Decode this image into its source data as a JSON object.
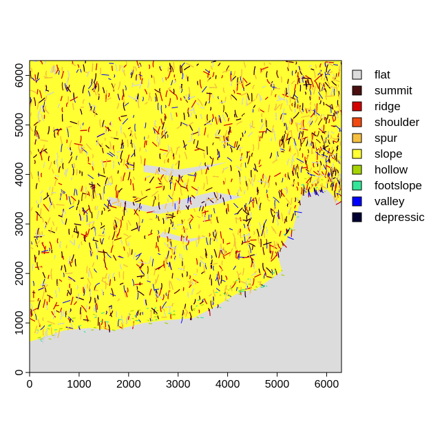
{
  "chart_data": {
    "type": "heatmap",
    "title": "",
    "xlabel": "",
    "ylabel": "",
    "xlim": [
      0,
      6300
    ],
    "ylim": [
      0,
      6300
    ],
    "x_ticks": [
      {
        "value": 0,
        "label": "0"
      },
      {
        "value": 1000,
        "label": "1000"
      },
      {
        "value": 2000,
        "label": "2000"
      },
      {
        "value": 3000,
        "label": "3000"
      },
      {
        "value": 4000,
        "label": "4000"
      },
      {
        "value": 5000,
        "label": "5000"
      },
      {
        "value": 6000,
        "label": "6000"
      }
    ],
    "y_ticks": [
      {
        "value": 0,
        "label": "0"
      },
      {
        "value": 1000,
        "label": "1000"
      },
      {
        "value": 2000,
        "label": "2000"
      },
      {
        "value": 3000,
        "label": "3000"
      },
      {
        "value": 4000,
        "label": "4000"
      },
      {
        "value": 5000,
        "label": "5000"
      },
      {
        "value": 6000,
        "label": "6000"
      }
    ],
    "legend": {
      "position": "right",
      "entries": [
        {
          "label": "flat",
          "color": "#DCDCDC"
        },
        {
          "label": "summit",
          "color": "#4A0F0F"
        },
        {
          "label": "ridge",
          "color": "#D40000"
        },
        {
          "label": "shoulder",
          "color": "#F04A10"
        },
        {
          "label": "spur",
          "color": "#F5C040"
        },
        {
          "label": "slope",
          "color": "#FFFF33"
        },
        {
          "label": "hollow",
          "color": "#A6D400"
        },
        {
          "label": "footslope",
          "color": "#33E699"
        },
        {
          "label": "valley",
          "color": "#0000FF"
        },
        {
          "label": "depressic",
          "color": "#000033"
        }
      ]
    },
    "coastline_boundary": [
      [
        0,
        620
      ],
      [
        700,
        850
      ],
      [
        1200,
        900
      ],
      [
        1700,
        850
      ],
      [
        2300,
        1000
      ],
      [
        2700,
        1050
      ],
      [
        3300,
        1100
      ],
      [
        3700,
        1300
      ],
      [
        4200,
        1600
      ],
      [
        4600,
        1700
      ],
      [
        5100,
        2050
      ],
      [
        5000,
        2400
      ],
      [
        5300,
        2850
      ],
      [
        5400,
        3200
      ],
      [
        5500,
        3600
      ],
      [
        6000,
        3700
      ],
      [
        6250,
        3450
      ]
    ],
    "flat_inlets": [
      [
        [
          2300,
          4200
        ],
        [
          3000,
          4100
        ],
        [
          4000,
          4250
        ],
        [
          3000,
          3950
        ],
        [
          2300,
          4050
        ]
      ],
      [
        [
          1600,
          3550
        ],
        [
          2500,
          3350
        ],
        [
          3700,
          3650
        ],
        [
          4300,
          3550
        ],
        [
          3800,
          3400
        ],
        [
          2600,
          3200
        ],
        [
          1600,
          3400
        ]
      ],
      [
        [
          2700,
          2850
        ],
        [
          3200,
          2700
        ],
        [
          3600,
          2750
        ],
        [
          3200,
          2620
        ],
        [
          2600,
          2750
        ]
      ]
    ]
  }
}
